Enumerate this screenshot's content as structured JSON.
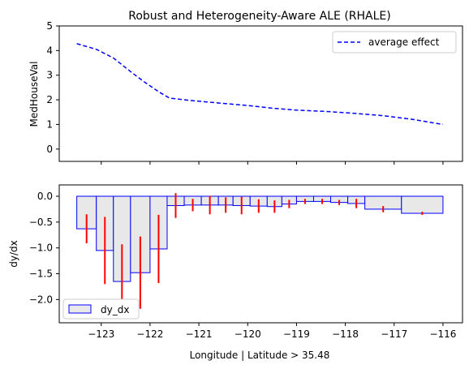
{
  "chart_data": [
    {
      "type": "line",
      "title": "Robust and Heterogeneity-Aware ALE (RHALE)",
      "xlabel": "",
      "ylabel": "MedHouseVal",
      "xlim": [
        -123.86,
        -115.6
      ],
      "ylim": [
        -0.5,
        5
      ],
      "yticks": [
        "0",
        "1",
        "2",
        "3",
        "4",
        "5"
      ],
      "legend_position": "top-right",
      "series": [
        {
          "name": "average effect",
          "color": "#0000ff",
          "style": "dashed",
          "x": [
            -123.5,
            -123.1,
            -122.75,
            -122.4,
            -122.1,
            -121.8,
            -121.6,
            -121.2,
            -120.6,
            -120.0,
            -119.5,
            -119.0,
            -118.4,
            -117.8,
            -117.2,
            -116.6,
            -116.0
          ],
          "y": [
            4.28,
            4.05,
            3.7,
            3.15,
            2.7,
            2.3,
            2.07,
            1.98,
            1.87,
            1.77,
            1.66,
            1.58,
            1.53,
            1.45,
            1.35,
            1.2,
            1.0
          ]
        }
      ]
    },
    {
      "type": "bar",
      "title": "",
      "xlabel": "Longitude | Latitude > 35.48",
      "ylabel": "dy/dx",
      "xlim": [
        -123.86,
        -115.6
      ],
      "ylim": [
        -2.45,
        0.22
      ],
      "xticks": [
        "−123",
        "−122",
        "−121",
        "−120",
        "−119",
        "−118",
        "−117",
        "−116"
      ],
      "yticks": [
        "−2.0",
        "−1.5",
        "−1.0",
        "−0.5",
        "0.0"
      ],
      "legend_position": "bottom-left",
      "bar_color": "#e8e8e8",
      "bar_edge_color": "#0000ff",
      "error_color": "#ff0000",
      "bars": {
        "name": "dy_dx",
        "edges": [
          -123.5,
          -123.1,
          -122.75,
          -122.4,
          -122.0,
          -121.65,
          -121.3,
          -120.95,
          -120.6,
          -120.3,
          -119.95,
          -119.6,
          -119.3,
          -119.0,
          -118.65,
          -118.3,
          -117.95,
          -117.6,
          -116.85,
          -116.0
        ],
        "values": [
          -0.63,
          -1.05,
          -1.65,
          -1.48,
          -1.02,
          -0.18,
          -0.17,
          -0.17,
          -0.17,
          -0.18,
          -0.19,
          -0.2,
          -0.15,
          -0.1,
          -0.1,
          -0.12,
          -0.14,
          -0.25,
          -0.33
        ],
        "errors": [
          0.28,
          0.65,
          0.72,
          0.7,
          0.66,
          0.24,
          0.12,
          0.18,
          0.15,
          0.17,
          0.13,
          0.12,
          0.08,
          0.05,
          0.05,
          0.05,
          0.09,
          0.06,
          0.03
        ]
      }
    }
  ]
}
